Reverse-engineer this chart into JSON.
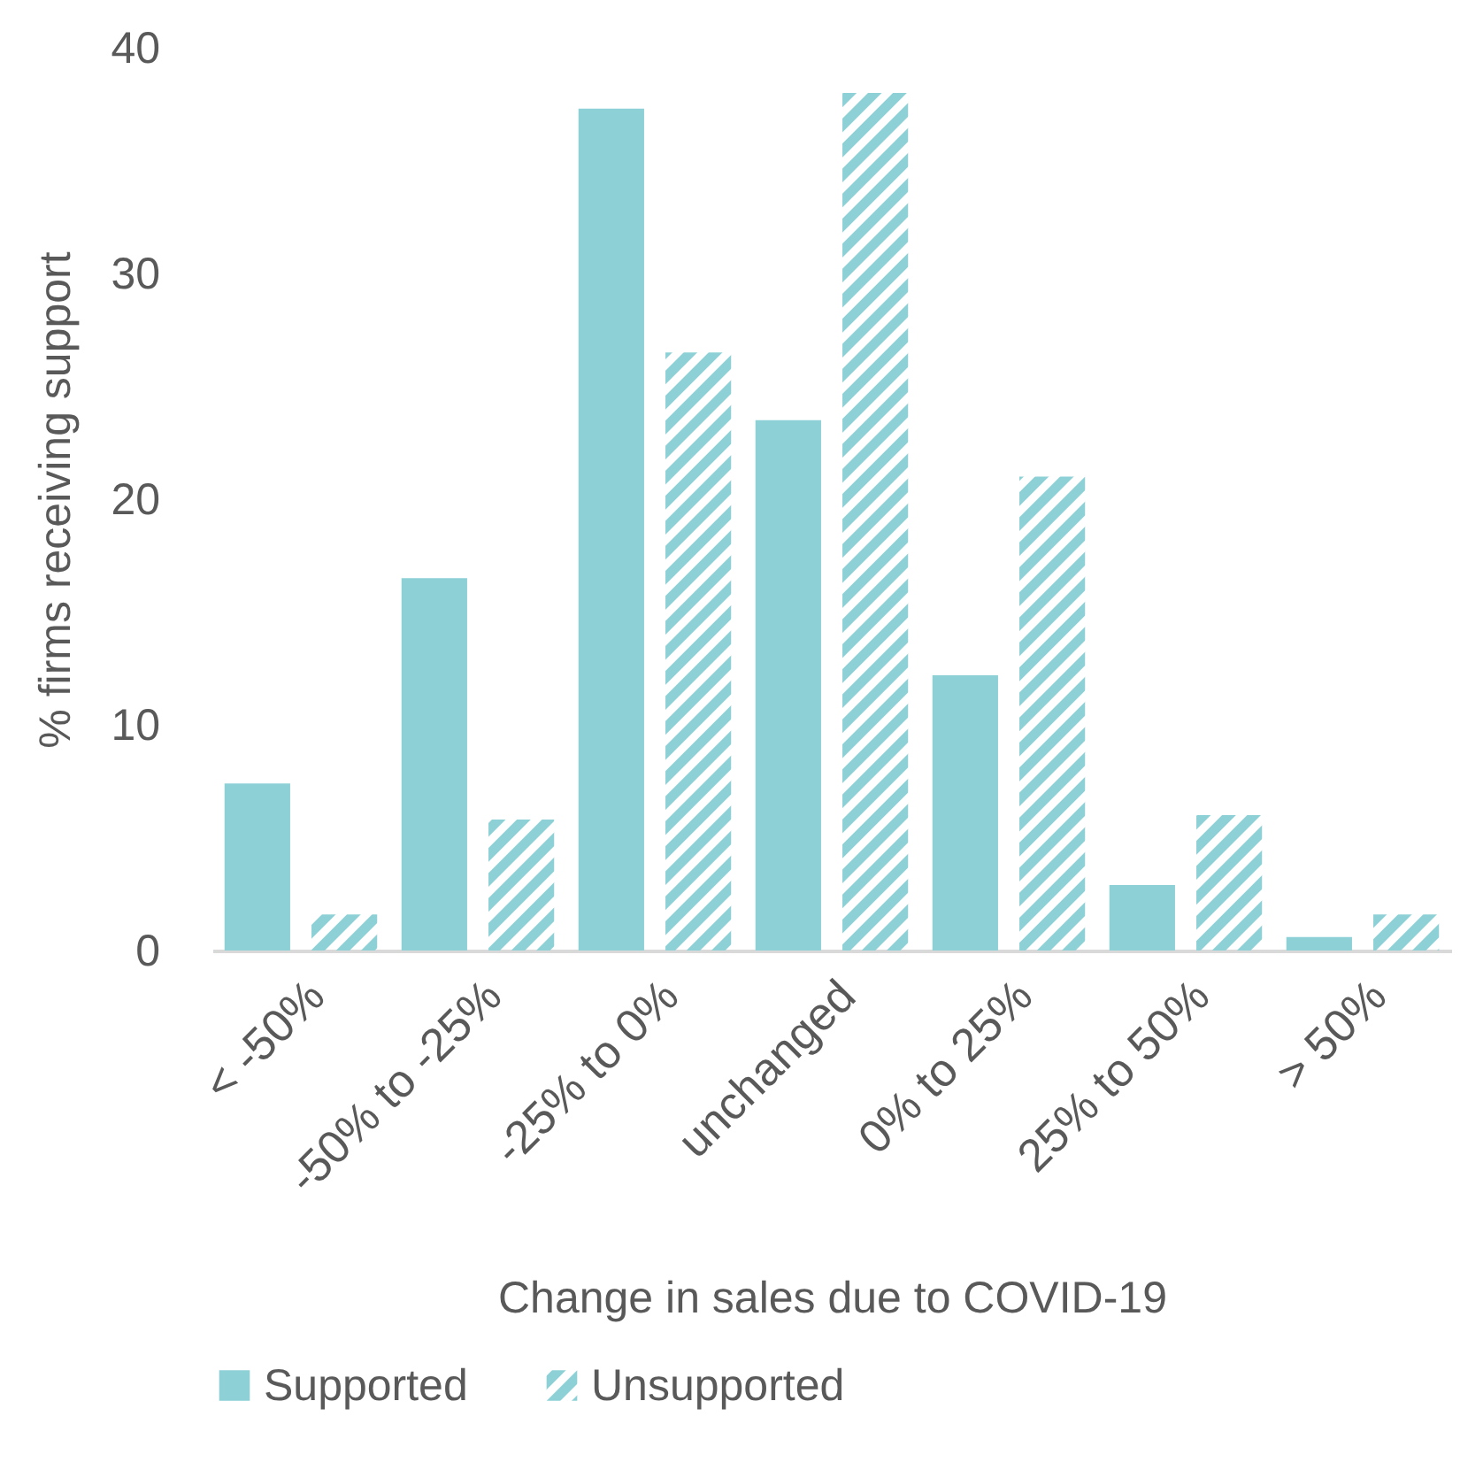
{
  "chart_data": {
    "type": "bar",
    "xlabel": "Change in sales due to COVID-19",
    "ylabel": "% firms receiving support",
    "categories": [
      "< -50%",
      "-50% to -25%",
      "-25% to 0%",
      "unchanged",
      "0% to 25%",
      "25% to 50%",
      "> 50%"
    ],
    "series": [
      {
        "name": "Supported",
        "color": "#8dd1d6",
        "values": [
          7.4,
          16.5,
          37.3,
          23.5,
          12.2,
          2.9,
          0.6
        ]
      },
      {
        "name": "Unsupported",
        "color": "#8dd1d6",
        "values": [
          1.6,
          5.8,
          26.5,
          38,
          21,
          6,
          1.6
        ]
      }
    ],
    "ylim": [
      0,
      40
    ],
    "yticks": [
      0,
      10,
      20,
      30,
      40
    ],
    "grid": false,
    "legend": "bottom"
  }
}
